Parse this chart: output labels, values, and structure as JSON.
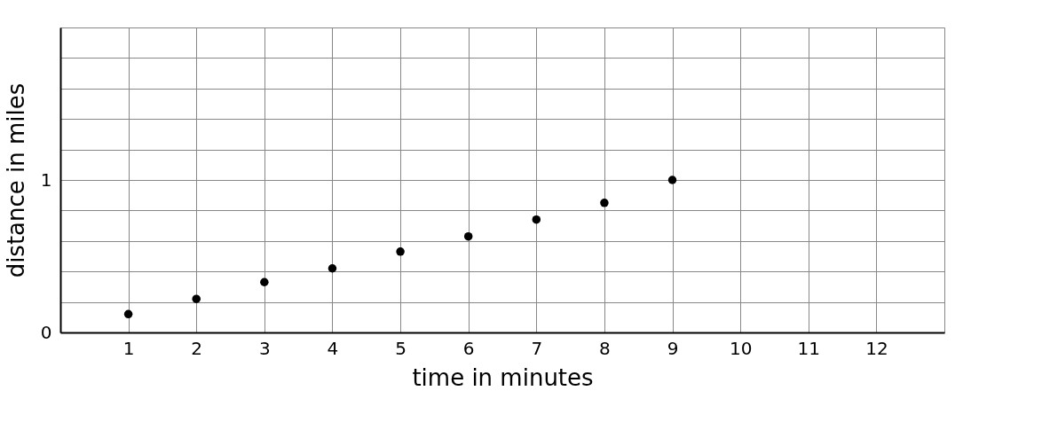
{
  "chart_data": {
    "type": "scatter",
    "xlabel": "time in minutes",
    "ylabel": "distance in miles",
    "x": [
      1,
      2,
      3,
      4,
      5,
      6,
      7,
      8,
      9
    ],
    "series": [
      {
        "color": "#000000",
        "values": [
          0.12,
          0.22,
          0.33,
          0.42,
          0.53,
          0.63,
          0.74,
          0.85,
          1
        ]
      }
    ],
    "xlim": [
      0,
      13
    ],
    "xticks": [
      {
        "value": 0,
        "label": null
      },
      1,
      2,
      3,
      4,
      5,
      6,
      7,
      8,
      9,
      10,
      11,
      12,
      {
        "value": 13,
        "label": null
      }
    ],
    "ylim": [
      0,
      2
    ],
    "yticks": [
      0,
      {
        "value": 0.2,
        "label": null
      },
      {
        "value": 0.4,
        "label": null
      },
      {
        "value": 0.6,
        "label": null
      },
      {
        "value": 0.8,
        "label": null
      },
      1,
      {
        "value": 1.2,
        "label": null
      },
      {
        "value": 1.4,
        "label": null
      },
      {
        "value": 1.6,
        "label": null
      },
      {
        "value": 1.8,
        "label": null
      },
      {
        "value": 2,
        "label": null
      }
    ],
    "grid": true,
    "marker": "circle"
  }
}
